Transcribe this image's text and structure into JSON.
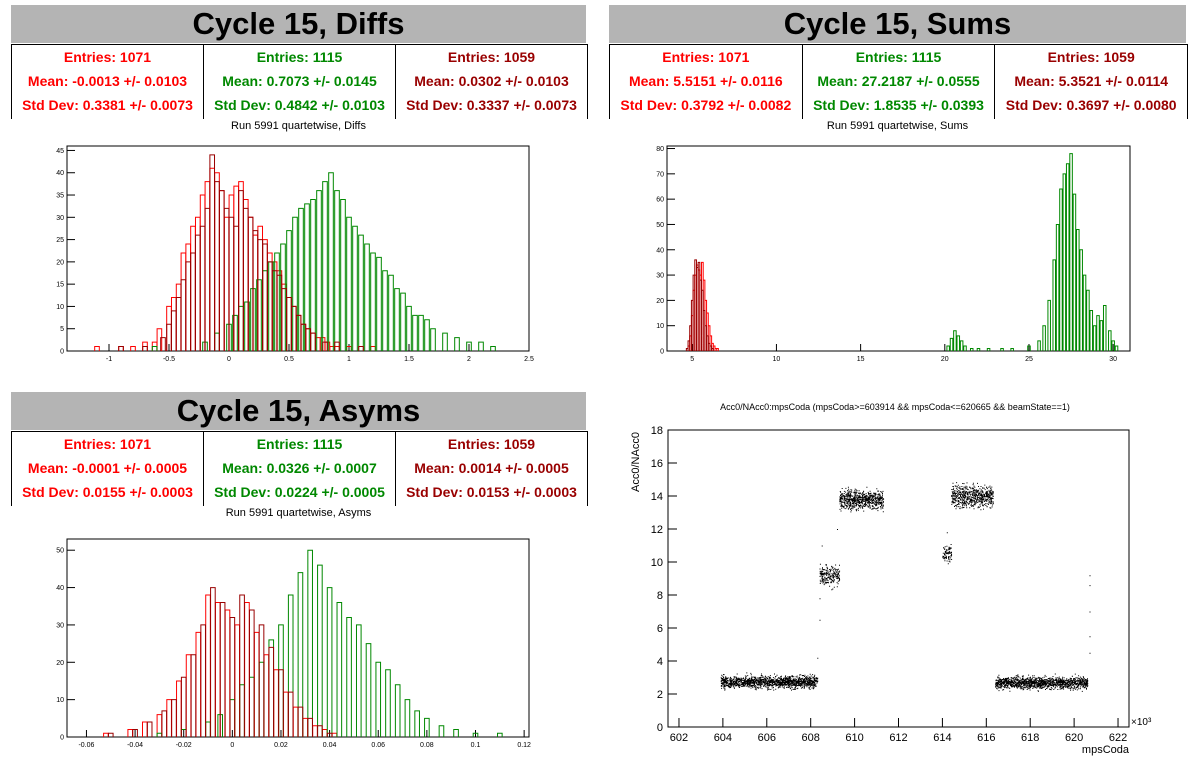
{
  "colors": {
    "red": "#ff0000",
    "green": "#008800",
    "darkred": "#990000",
    "title_bg": "#b4b4b4"
  },
  "panels": {
    "diffs": {
      "title": "Cycle 15, Diffs",
      "stats": [
        {
          "entries": "Entries: 1071",
          "mean": "Mean: -0.0013 +/- 0.0103",
          "std": "Std Dev: 0.3381 +/- 0.0073",
          "color": "#ff0000"
        },
        {
          "entries": "Entries: 1115",
          "mean": "Mean: 0.7073 +/- 0.0145",
          "std": "Std Dev: 0.4842 +/- 0.0103",
          "color": "#008800"
        },
        {
          "entries": "Entries: 1059",
          "mean": "Mean: 0.0302 +/- 0.0103",
          "std": "Std Dev: 0.3337 +/- 0.0073",
          "color": "#990000"
        }
      ],
      "subtitle": "Run 5991 quartetwise, Diffs"
    },
    "sums": {
      "title": "Cycle 15, Sums",
      "stats": [
        {
          "entries": "Entries: 1071",
          "mean": "Mean: 5.5151 +/- 0.0116",
          "std": "Std Dev: 0.3792 +/- 0.0082",
          "color": "#ff0000"
        },
        {
          "entries": "Entries: 1115",
          "mean": "Mean: 27.2187 +/- 0.0555",
          "std": "Std Dev: 1.8535 +/- 0.0393",
          "color": "#008800"
        },
        {
          "entries": "Entries: 1059",
          "mean": "Mean: 5.3521 +/- 0.0114",
          "std": "Std Dev: 0.3697 +/- 0.0080",
          "color": "#990000"
        }
      ],
      "subtitle": "Run 5991 quartetwise, Sums"
    },
    "asyms": {
      "title": "Cycle 15, Asyms",
      "stats": [
        {
          "entries": "Entries: 1071",
          "mean": "Mean: -0.0001 +/- 0.0005",
          "std": "Std Dev: 0.0155 +/- 0.0003",
          "color": "#ff0000"
        },
        {
          "entries": "Entries: 1115",
          "mean": "Mean: 0.0326 +/- 0.0007",
          "std": "Std Dev: 0.0224 +/- 0.0005",
          "color": "#008800"
        },
        {
          "entries": "Entries: 1059",
          "mean": "Mean: 0.0014 +/- 0.0005",
          "std": "Std Dev: 0.0153 +/- 0.0003",
          "color": "#990000"
        }
      ],
      "subtitle": "Run 5991 quartetwise, Asyms"
    },
    "scatter": {
      "subtitle": "Acc0/NAcc0:mpsCoda (mpsCoda>=603914 && mpsCoda<=620665 && beamState==1)"
    }
  },
  "chart_data": [
    {
      "type": "histogram",
      "name": "diffs",
      "xlim": [
        -1.35,
        2.5
      ],
      "ylim": [
        0,
        46
      ],
      "xticks": [
        -1,
        -0.5,
        0,
        0.5,
        1,
        1.5,
        2,
        2.5
      ],
      "xtick_labels": [
        "-1",
        "-0.5",
        "0",
        "0.5",
        "1",
        "1.5",
        "2",
        "2.5"
      ],
      "yticks": [
        0,
        5,
        10,
        15,
        20,
        25,
        30,
        35,
        40,
        45
      ],
      "series": [
        {
          "color": "#ff0000",
          "bin_width": 0.0385,
          "x": [
            -1.1,
            -0.9,
            -0.8,
            -0.7,
            -0.62,
            -0.58,
            -0.5,
            -0.46,
            -0.42,
            -0.38,
            -0.34,
            -0.3,
            -0.26,
            -0.22,
            -0.18,
            -0.14,
            -0.1,
            -0.06,
            -0.02,
            0.02,
            0.06,
            0.1,
            0.14,
            0.18,
            0.22,
            0.26,
            0.3,
            0.34,
            0.38,
            0.42,
            0.46,
            0.5,
            0.54,
            0.58,
            0.62,
            0.66,
            0.7,
            0.74,
            0.78,
            0.82,
            0.86,
            0.9,
            1.0,
            1.2
          ],
          "values": [
            1,
            1,
            1,
            2,
            2,
            5,
            10,
            12,
            15,
            22,
            24,
            28,
            30,
            35,
            38,
            41,
            40,
            36,
            30,
            35,
            37,
            38,
            34,
            30,
            26,
            28,
            25,
            22,
            20,
            18,
            15,
            12,
            10,
            8,
            6,
            5,
            4,
            3,
            3,
            2,
            1,
            1,
            1,
            1
          ]
        },
        {
          "color": "#008800",
          "bin_width": 0.0385,
          "x": [
            -0.62,
            -0.2,
            -0.1,
            0.0,
            0.05,
            0.1,
            0.15,
            0.2,
            0.25,
            0.3,
            0.35,
            0.4,
            0.45,
            0.5,
            0.55,
            0.6,
            0.65,
            0.7,
            0.75,
            0.8,
            0.85,
            0.9,
            0.95,
            1.0,
            1.05,
            1.1,
            1.15,
            1.2,
            1.25,
            1.3,
            1.35,
            1.4,
            1.45,
            1.5,
            1.55,
            1.6,
            1.65,
            1.7,
            1.8,
            1.9,
            2.0,
            2.1,
            2.2
          ],
          "values": [
            1,
            2,
            4,
            6,
            8,
            10,
            11,
            14,
            16,
            18,
            20,
            22,
            24,
            27,
            30,
            32,
            33,
            34,
            36,
            38,
            40,
            36,
            34,
            30,
            28,
            26,
            24,
            22,
            21,
            18,
            17,
            14,
            13,
            10,
            8,
            8,
            7,
            5,
            4,
            3,
            2,
            2,
            1
          ]
        },
        {
          "color": "#990000",
          "bin_width": 0.0385,
          "x": [
            -0.9,
            -0.7,
            -0.55,
            -0.5,
            -0.46,
            -0.42,
            -0.38,
            -0.34,
            -0.3,
            -0.26,
            -0.22,
            -0.18,
            -0.14,
            -0.1,
            -0.06,
            -0.02,
            0.02,
            0.06,
            0.1,
            0.14,
            0.18,
            0.22,
            0.26,
            0.3,
            0.34,
            0.38,
            0.42,
            0.46,
            0.5,
            0.54,
            0.58,
            0.62,
            0.66,
            0.7,
            0.8,
            0.9,
            1.1
          ],
          "values": [
            1,
            1,
            3,
            6,
            9,
            12,
            16,
            20,
            22,
            26,
            28,
            32,
            44,
            38,
            36,
            32,
            30,
            28,
            36,
            32,
            30,
            27,
            25,
            24,
            20,
            18,
            17,
            14,
            12,
            10,
            8,
            6,
            5,
            4,
            2,
            2,
            1
          ]
        }
      ]
    },
    {
      "type": "histogram",
      "name": "sums",
      "xlim": [
        3.5,
        31
      ],
      "ylim": [
        0,
        81
      ],
      "xticks": [
        5,
        10,
        15,
        20,
        25,
        30
      ],
      "xtick_labels": [
        "5",
        "10",
        "15",
        "20",
        "25",
        "30"
      ],
      "yticks": [
        0,
        10,
        20,
        30,
        40,
        50,
        60,
        70,
        80
      ],
      "series": [
        {
          "color": "#ff0000",
          "bin_width": 0.1,
          "x": [
            4.8,
            4.9,
            5.0,
            5.1,
            5.2,
            5.3,
            5.4,
            5.5,
            5.6,
            5.7,
            5.8,
            5.9,
            6.0,
            6.1,
            6.2,
            6.3,
            6.4,
            6.5
          ],
          "values": [
            2,
            6,
            14,
            24,
            30,
            34,
            32,
            30,
            35,
            28,
            20,
            15,
            10,
            6,
            3,
            2,
            1,
            1
          ]
        },
        {
          "color": "#990000",
          "bin_width": 0.1,
          "x": [
            4.7,
            4.8,
            4.9,
            5.0,
            5.1,
            5.2,
            5.3,
            5.4,
            5.5,
            5.6,
            5.7,
            5.8,
            5.9,
            6.0,
            6.1,
            6.2
          ],
          "values": [
            1,
            4,
            10,
            20,
            30,
            36,
            33,
            35,
            28,
            24,
            16,
            10,
            6,
            3,
            2,
            1
          ]
        },
        {
          "color": "#008800",
          "bin_width": 0.15,
          "x": [
            20.2,
            20.4,
            20.6,
            20.8,
            21.0,
            21.2,
            21.6,
            22.0,
            22.6,
            23.4,
            24.0,
            25.0,
            25.6,
            25.9,
            26.2,
            26.5,
            26.7,
            26.9,
            27.1,
            27.3,
            27.5,
            27.7,
            27.9,
            28.1,
            28.3,
            28.5,
            28.7,
            28.9,
            29.1,
            29.3,
            29.5,
            29.8,
            30.0,
            30.2
          ],
          "values": [
            2,
            5,
            8,
            6,
            4,
            2,
            1,
            1,
            1,
            1,
            1,
            2,
            4,
            10,
            20,
            36,
            50,
            64,
            70,
            74,
            78,
            62,
            48,
            40,
            30,
            24,
            16,
            10,
            14,
            12,
            18,
            8,
            4,
            2
          ]
        }
      ]
    },
    {
      "type": "histogram",
      "name": "asyms",
      "xlim": [
        -0.068,
        0.122
      ],
      "ylim": [
        0,
        53
      ],
      "xticks": [
        -0.06,
        -0.04,
        -0.02,
        0,
        0.02,
        0.04,
        0.06,
        0.08,
        0.1,
        0.12
      ],
      "xtick_labels": [
        "-0.06",
        "-0.04",
        "-0.02",
        "0",
        "0.02",
        "0.04",
        "0.06",
        "0.08",
        "0.1",
        "0.12"
      ],
      "yticks": [
        0,
        10,
        20,
        30,
        40,
        50
      ],
      "series": [
        {
          "color": "#ff0000",
          "bin_width": 0.0019,
          "x": [
            -0.052,
            -0.042,
            -0.036,
            -0.03,
            -0.026,
            -0.022,
            -0.018,
            -0.014,
            -0.01,
            -0.006,
            -0.002,
            0.002,
            0.006,
            0.01,
            0.014,
            0.018,
            0.022,
            0.026,
            0.03,
            0.034,
            0.038,
            0.042
          ],
          "values": [
            1,
            2,
            4,
            6,
            10,
            15,
            22,
            28,
            38,
            36,
            34,
            30,
            36,
            28,
            22,
            18,
            12,
            8,
            5,
            3,
            2,
            1
          ]
        },
        {
          "color": "#008800",
          "bin_width": 0.0019,
          "x": [
            -0.03,
            -0.02,
            -0.01,
            -0.005,
            0.0,
            0.004,
            0.008,
            0.012,
            0.016,
            0.02,
            0.024,
            0.028,
            0.032,
            0.036,
            0.04,
            0.044,
            0.048,
            0.052,
            0.056,
            0.06,
            0.064,
            0.068,
            0.072,
            0.076,
            0.08,
            0.086,
            0.092,
            0.1,
            0.11
          ],
          "values": [
            1,
            2,
            4,
            6,
            10,
            14,
            16,
            20,
            26,
            30,
            38,
            44,
            50,
            46,
            40,
            36,
            32,
            30,
            25,
            20,
            18,
            14,
            10,
            7,
            5,
            3,
            2,
            1,
            1
          ]
        },
        {
          "color": "#990000",
          "bin_width": 0.0019,
          "x": [
            -0.05,
            -0.04,
            -0.034,
            -0.028,
            -0.024,
            -0.02,
            -0.016,
            -0.012,
            -0.008,
            -0.004,
            0.0,
            0.004,
            0.008,
            0.012,
            0.016,
            0.02,
            0.024,
            0.028,
            0.032,
            0.036,
            0.04
          ],
          "values": [
            1,
            2,
            4,
            7,
            10,
            16,
            22,
            30,
            40,
            36,
            32,
            38,
            34,
            30,
            24,
            18,
            12,
            8,
            5,
            3,
            1
          ]
        }
      ]
    },
    {
      "type": "scatter",
      "name": "acc0",
      "ylabel": "Acc0/NAcc0",
      "xlabel": "mpsCoda",
      "exponent_label": "×10³",
      "xlim": [
        601.5,
        622.5
      ],
      "ylim": [
        0,
        18
      ],
      "xticks": [
        602,
        604,
        606,
        608,
        610,
        612,
        614,
        616,
        618,
        620,
        622
      ],
      "xtick_labels": [
        "602",
        "604",
        "606",
        "608",
        "610",
        "612",
        "614",
        "616",
        "618",
        "620",
        "622"
      ],
      "yticks": [
        0,
        2,
        4,
        6,
        8,
        10,
        12,
        14,
        16,
        18
      ],
      "ytick_labels": [
        "0",
        "2",
        "4",
        "6",
        "8",
        "10",
        "12",
        "14",
        "16",
        "18"
      ],
      "clusters": [
        {
          "x_range": [
            603.9,
            608.3
          ],
          "y_center": 2.75,
          "y_spread": 0.35,
          "count": 1400
        },
        {
          "x_range": [
            608.4,
            609.3
          ],
          "y_center": 9.2,
          "y_spread": 0.6,
          "count": 220
        },
        {
          "x_range": [
            609.3,
            611.3
          ],
          "y_center": 13.8,
          "y_spread": 0.55,
          "count": 700
        },
        {
          "x_range": [
            614.0,
            614.4
          ],
          "y_center": 10.5,
          "y_spread": 0.6,
          "count": 80
        },
        {
          "x_range": [
            614.4,
            616.3
          ],
          "y_center": 14.0,
          "y_spread": 0.65,
          "count": 620
        },
        {
          "x_range": [
            616.4,
            620.6
          ],
          "y_center": 2.7,
          "y_spread": 0.35,
          "count": 1350
        }
      ],
      "points": [
        [
          608.3,
          4.2
        ],
        [
          608.4,
          6.5
        ],
        [
          608.4,
          7.8
        ],
        [
          608.5,
          11.0
        ],
        [
          609.2,
          12.0
        ],
        [
          614.2,
          11.8
        ],
        [
          620.7,
          9.2
        ],
        [
          620.7,
          8.6
        ],
        [
          620.7,
          7.0
        ],
        [
          620.7,
          5.5
        ],
        [
          620.7,
          4.5
        ]
      ]
    }
  ]
}
